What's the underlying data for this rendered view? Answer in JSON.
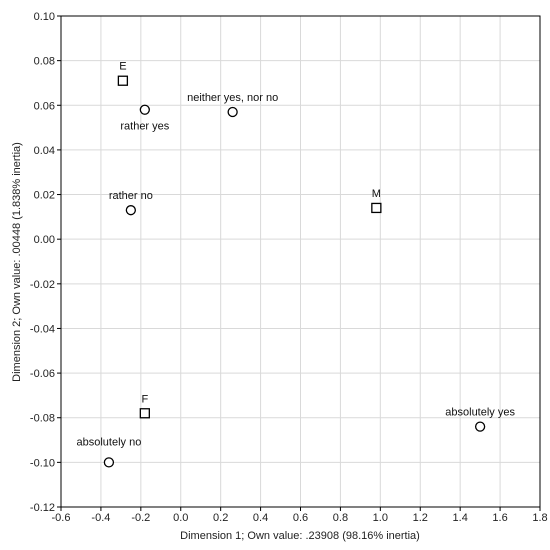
{
  "chart_data": {
    "type": "scatter",
    "xlabel": "Dimension 1; Own value: .23908 (98.16% inertia)",
    "ylabel": "Dimension 2; Own value: .00448 (1.838% inertia)",
    "xlim": [
      -0.6,
      1.8
    ],
    "ylim": [
      -0.12,
      0.1
    ],
    "xticks": [
      "-0.6",
      "-0.4",
      "-0.2",
      "0.0",
      "0.2",
      "0.4",
      "0.6",
      "0.8",
      "1.0",
      "1.2",
      "1.4",
      "1.6",
      "1.8"
    ],
    "yticks": [
      "0.10",
      "0.08",
      "0.06",
      "0.04",
      "0.02",
      "0.00",
      "-0.02",
      "-0.04",
      "-0.06",
      "-0.08",
      "-0.10",
      "-0.12"
    ],
    "grid": true,
    "series": [
      {
        "marker": "square",
        "points": [
          {
            "label": "E",
            "x": -0.29,
            "y": 0.071
          },
          {
            "label": "M",
            "x": 0.98,
            "y": 0.014
          },
          {
            "label": "F",
            "x": -0.18,
            "y": -0.078
          }
        ]
      },
      {
        "marker": "circle",
        "points": [
          {
            "label": "rather yes",
            "x": -0.18,
            "y": 0.058
          },
          {
            "label": "neither yes, nor no",
            "x": 0.26,
            "y": 0.057
          },
          {
            "label": "rather no",
            "x": -0.25,
            "y": 0.013
          },
          {
            "label": "absolutely yes",
            "x": 1.5,
            "y": -0.084
          },
          {
            "label": "absolutely no",
            "x": -0.36,
            "y": -0.1
          }
        ]
      }
    ]
  }
}
